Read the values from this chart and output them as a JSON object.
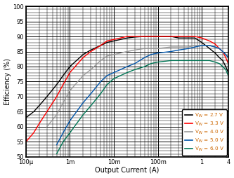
{
  "title": "",
  "xlabel": "Output Current (A)",
  "ylabel": "Efficiency (%)",
  "ylim": [
    50,
    100
  ],
  "yticks": [
    50,
    55,
    60,
    65,
    70,
    75,
    80,
    85,
    90,
    95,
    100
  ],
  "background_color": "#ffffff",
  "legend_entries": [
    {
      "label": "V$_{IN}$ = 2.7 V",
      "color": "#000000"
    },
    {
      "label": "V$_{IN}$ = 3.3 V",
      "color": "#ff0000"
    },
    {
      "label": "V$_{IN}$ = 4.0 V",
      "color": "#999999"
    },
    {
      "label": "V$_{IN}$ = 5.0 V",
      "color": "#0055aa"
    },
    {
      "label": "V$_{IN}$ = 6.0 V",
      "color": "#007755"
    }
  ],
  "curves": {
    "vin_2p7": {
      "color": "#000000",
      "x": [
        0.0001,
        0.00015,
        0.0002,
        0.0003,
        0.0005,
        0.0007,
        0.001,
        0.002,
        0.003,
        0.005,
        0.007,
        0.01,
        0.02,
        0.03,
        0.05,
        0.07,
        0.1,
        0.2,
        0.3,
        0.5,
        0.7,
        1.0,
        1.5,
        2.0,
        2.5,
        3.0,
        3.5,
        4.0
      ],
      "y": [
        63,
        65,
        67,
        70,
        74,
        77,
        80,
        84,
        85.5,
        87,
        88,
        88.5,
        89.5,
        89.8,
        90,
        90,
        90,
        90,
        89.5,
        89.5,
        89.5,
        88,
        86,
        84.5,
        83,
        82,
        80,
        78
      ]
    },
    "vin_3p3": {
      "color": "#ff0000",
      "x": [
        0.0001,
        0.00015,
        0.0002,
        0.0003,
        0.0005,
        0.0007,
        0.001,
        0.002,
        0.003,
        0.005,
        0.007,
        0.01,
        0.02,
        0.03,
        0.05,
        0.07,
        0.1,
        0.2,
        0.3,
        0.5,
        0.7,
        1.0,
        1.5,
        2.0,
        2.5,
        3.0,
        3.5,
        4.0
      ],
      "y": [
        55,
        58,
        61,
        65,
        70,
        74,
        78,
        83,
        85,
        87,
        88.5,
        89,
        90,
        90,
        90,
        90,
        90,
        90,
        90,
        90,
        90,
        89.5,
        88.5,
        87.5,
        86,
        85,
        83,
        81
      ]
    },
    "vin_4p0": {
      "color": "#999999",
      "x": [
        0.0003,
        0.0005,
        0.0007,
        0.001,
        0.002,
        0.003,
        0.005,
        0.007,
        0.01,
        0.02,
        0.03,
        0.05,
        0.07,
        0.1,
        0.2,
        0.3,
        0.5,
        0.7,
        1.0,
        1.5,
        2.0,
        2.5,
        3.0,
        3.5,
        4.0
      ],
      "y": [
        60,
        64,
        68,
        72,
        77,
        79,
        82,
        83.5,
        84,
        85,
        85.5,
        86,
        86,
        86,
        86.5,
        86.5,
        86.5,
        87,
        87,
        87,
        86.5,
        86,
        85,
        84,
        83
      ]
    },
    "vin_5p0": {
      "color": "#0055aa",
      "x": [
        0.0005,
        0.0007,
        0.001,
        0.002,
        0.003,
        0.005,
        0.007,
        0.01,
        0.02,
        0.03,
        0.05,
        0.07,
        0.1,
        0.2,
        0.3,
        0.5,
        0.7,
        1.0,
        1.5,
        2.0,
        2.5,
        3.0,
        3.5,
        4.0
      ],
      "y": [
        54,
        58,
        62,
        68,
        71,
        75,
        77,
        78,
        80,
        81,
        83,
        84,
        84.5,
        85,
        85.5,
        86,
        86.5,
        87,
        87,
        86.5,
        86,
        85,
        84,
        83
      ]
    },
    "vin_6p0": {
      "color": "#007755",
      "x": [
        0.0005,
        0.0007,
        0.001,
        0.002,
        0.003,
        0.005,
        0.007,
        0.01,
        0.02,
        0.03,
        0.05,
        0.07,
        0.1,
        0.2,
        0.3,
        0.5,
        0.7,
        1.0,
        1.5,
        2.0,
        2.5,
        3.0,
        3.5,
        4.0
      ],
      "y": [
        51,
        55,
        58,
        64,
        67,
        71,
        74,
        76,
        78,
        79,
        80,
        81,
        81.5,
        82,
        82,
        82,
        82,
        82,
        82,
        81.5,
        81,
        80,
        79,
        77
      ]
    }
  },
  "xtick_positions": [
    0.0001,
    0.001,
    0.01,
    0.1,
    1,
    4
  ],
  "xtick_labels": [
    "100μ",
    "1m",
    "10m",
    "100m",
    "1",
    "4"
  ],
  "legend_text_color": "#cc6600",
  "linewidth": 1.0
}
